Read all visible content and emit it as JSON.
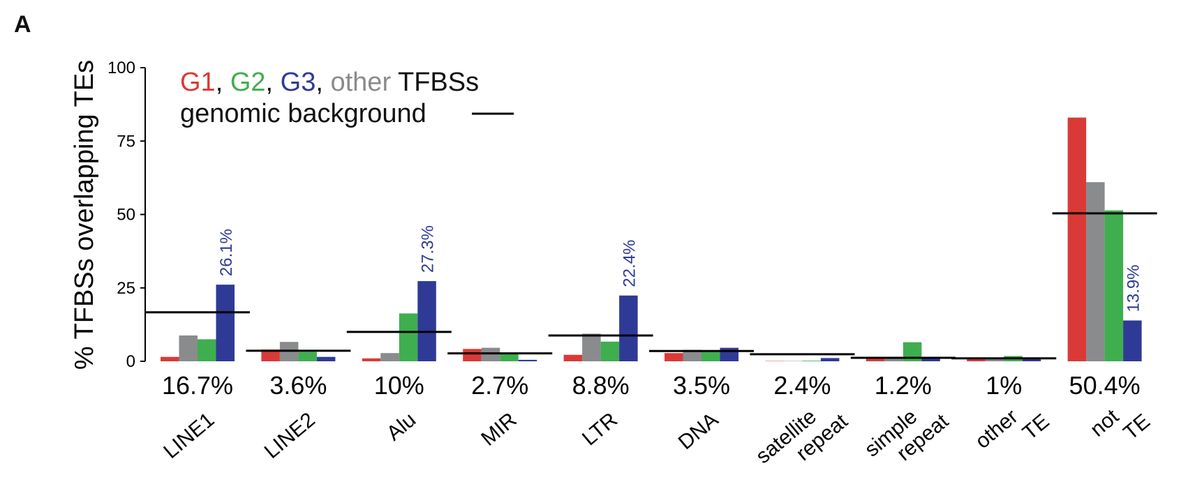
{
  "panel_label": "A",
  "chart_data": {
    "type": "bar",
    "ylabel": "% TFBSs overlapping TEs",
    "ylim": [
      0,
      100
    ],
    "yticks": [
      0,
      25,
      50,
      75,
      100
    ],
    "legend": {
      "placement": "top-left",
      "series_line": [
        {
          "text": "G1",
          "color": "#d93a37"
        },
        {
          "text": ", ",
          "color": "#111111"
        },
        {
          "text": "G2",
          "color": "#3fae4f"
        },
        {
          "text": ", ",
          "color": "#111111"
        },
        {
          "text": "G3",
          "color": "#2f3a96"
        },
        {
          "text": ", ",
          "color": "#111111"
        },
        {
          "text": "other",
          "color": "#8a8b8d"
        },
        {
          "text": " TFBSs",
          "color": "#111111"
        }
      ],
      "background_label": "genomic background"
    },
    "series": [
      {
        "name": "G1",
        "color": "#d93a37",
        "values": [
          1.5,
          4.0,
          1.0,
          4.2,
          2.2,
          2.8,
          0.1,
          1.0,
          0.8,
          83.0
        ]
      },
      {
        "name": "other",
        "color": "#8a8b8d",
        "values": [
          8.8,
          6.6,
          2.8,
          4.6,
          9.4,
          3.9,
          0.1,
          1.3,
          1.0,
          61.0
        ]
      },
      {
        "name": "G2",
        "color": "#3fae4f",
        "values": [
          7.5,
          3.2,
          16.3,
          2.4,
          6.7,
          3.3,
          0.2,
          6.5,
          1.8,
          51.4
        ]
      },
      {
        "name": "G3",
        "color": "#2f3a96",
        "values": [
          26.1,
          1.5,
          27.3,
          0.5,
          22.4,
          4.6,
          1.1,
          1.3,
          1.0,
          13.9
        ]
      }
    ],
    "categories": [
      {
        "label_lines": [
          "LINE1"
        ],
        "background": 16.7,
        "background_label": "16.7%",
        "annotation": "26.1%"
      },
      {
        "label_lines": [
          "LINE2"
        ],
        "background": 3.6,
        "background_label": "3.6%",
        "annotation": ""
      },
      {
        "label_lines": [
          "Alu"
        ],
        "background": 10.0,
        "background_label": "10%",
        "annotation": "27.3%"
      },
      {
        "label_lines": [
          "MIR"
        ],
        "background": 2.7,
        "background_label": "2.7%",
        "annotation": ""
      },
      {
        "label_lines": [
          "LTR"
        ],
        "background": 8.8,
        "background_label": "8.8%",
        "annotation": "22.4%"
      },
      {
        "label_lines": [
          "DNA"
        ],
        "background": 3.5,
        "background_label": "3.5%",
        "annotation": ""
      },
      {
        "label_lines": [
          "satellite",
          "repeat"
        ],
        "background": 2.4,
        "background_label": "2.4%",
        "annotation": ""
      },
      {
        "label_lines": [
          "simple",
          "repeat"
        ],
        "background": 1.2,
        "background_label": "1.2%",
        "annotation": ""
      },
      {
        "label_lines": [
          "other",
          "TE"
        ],
        "background": 1.0,
        "background_label": "1%",
        "annotation": ""
      },
      {
        "label_lines": [
          "not",
          "TE"
        ],
        "background": 50.4,
        "background_label": "50.4%",
        "annotation": "13.9%"
      }
    ],
    "annotation_color": "#2f3a96",
    "background_line_color": "#000000",
    "grid": false
  }
}
